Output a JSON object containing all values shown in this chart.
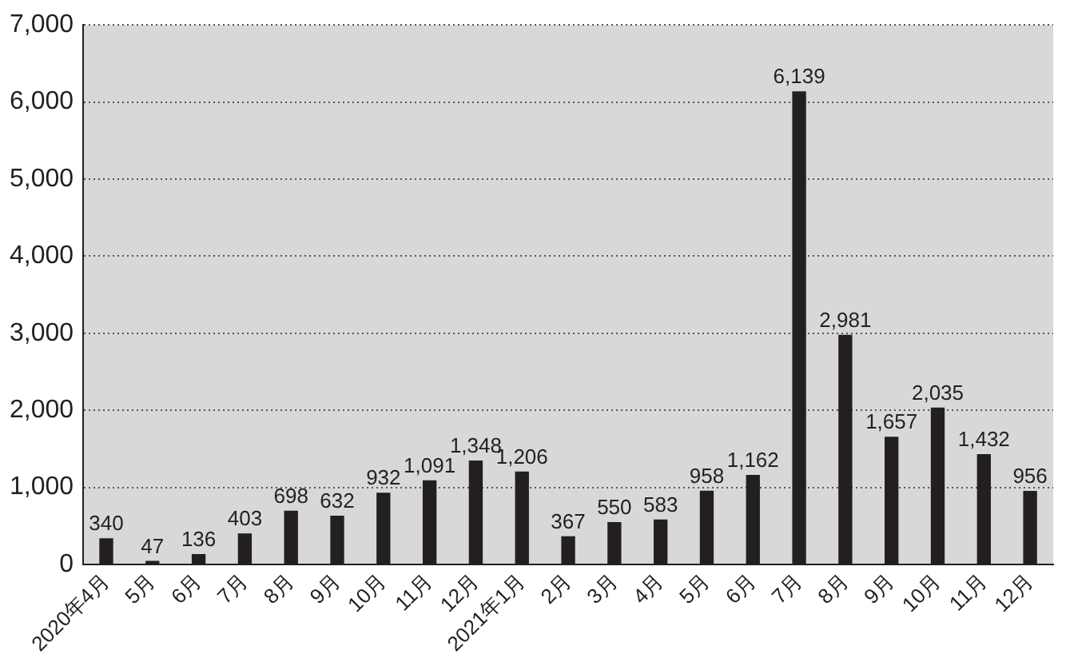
{
  "chart_data": {
    "type": "bar",
    "categories": [
      "2020年4月",
      "5月",
      "6月",
      "7月",
      "8月",
      "9月",
      "10月",
      "11月",
      "12月",
      "2021年1月",
      "2月",
      "3月",
      "4月",
      "5月",
      "6月",
      "7月",
      "8月",
      "9月",
      "10月",
      "11月",
      "12月"
    ],
    "values": [
      340,
      47,
      136,
      403,
      698,
      632,
      932,
      1091,
      1348,
      1206,
      367,
      550,
      583,
      958,
      1162,
      6139,
      2981,
      1657,
      2035,
      1432,
      956
    ],
    "value_labels": [
      "340",
      "47",
      "136",
      "403",
      "698",
      "632",
      "932",
      "1,091",
      "1,348",
      "1,206",
      "367",
      "550",
      "583",
      "958",
      "1,162",
      "6,139",
      "2,981",
      "1,657",
      "2,035",
      "1,432",
      "956"
    ],
    "color": "#231f20",
    "ylim": [
      0,
      7000
    ],
    "yticks": [
      0,
      {
        "value": 1000,
        "label": "1,000"
      },
      {
        "value": 2000,
        "label": "2,000"
      },
      {
        "value": 3000,
        "label": "3,000"
      },
      {
        "value": 4000,
        "label": "4,000"
      },
      {
        "value": 5000,
        "label": "5,000"
      },
      {
        "value": 6000,
        "label": "6,000"
      },
      {
        "value": 7000,
        "label": "7,000"
      }
    ],
    "grid": "y"
  }
}
